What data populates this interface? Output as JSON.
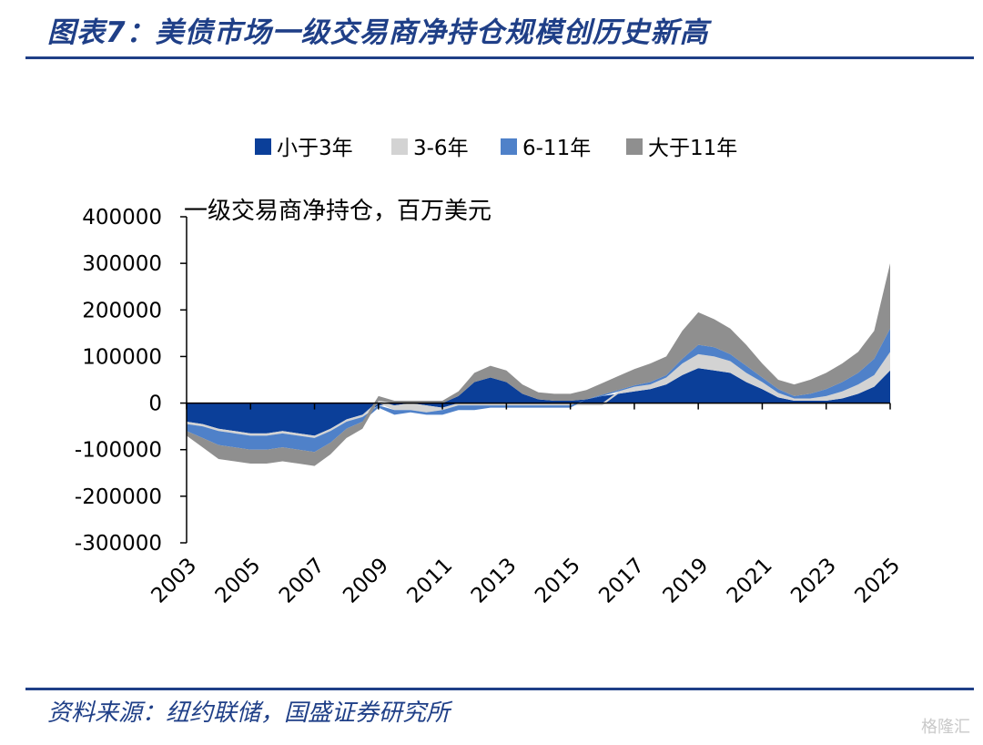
{
  "header": {
    "title": "图表7：美债市场一级交易商净持仓规模创历史新高"
  },
  "footer": {
    "source": "资料来源：纽约联储，国盛证券研究所",
    "watermark": "格隆汇"
  },
  "chart_data": {
    "type": "area",
    "title": "",
    "ylabel": "一级交易商净持仓，百万美元",
    "xlabel": "",
    "ylim": [
      -300000,
      400000
    ],
    "yticks": [
      400000,
      300000,
      200000,
      100000,
      0,
      -100000,
      -200000,
      -300000
    ],
    "xlim": [
      2003,
      2025
    ],
    "xticks": [
      "2003",
      "2005",
      "2007",
      "2009",
      "2011",
      "2013",
      "2015",
      "2017",
      "2019",
      "2021",
      "2023",
      "2025"
    ],
    "legend_position": "top-center",
    "x": [
      2003,
      2003.5,
      2004,
      2004.5,
      2005,
      2005.5,
      2006,
      2006.5,
      2007,
      2007.5,
      2008,
      2008.5,
      2009,
      2009.5,
      2010,
      2010.5,
      2011,
      2011.5,
      2012,
      2012.5,
      2013,
      2013.5,
      2014,
      2014.5,
      2015,
      2015.5,
      2016,
      2016.5,
      2017,
      2017.5,
      2018,
      2018.5,
      2019,
      2019.5,
      2020,
      2020.5,
      2021,
      2021.5,
      2022,
      2022.5,
      2023,
      2023.5,
      2024,
      2024.5,
      2025
    ],
    "series": [
      {
        "name": "小于3年",
        "color": "#0b3f99",
        "values": [
          -40000,
          -45000,
          -55000,
          -60000,
          -65000,
          -65000,
          -60000,
          -65000,
          -70000,
          -55000,
          -35000,
          -25000,
          -5000,
          -5000,
          0,
          -5000,
          -10000,
          15000,
          45000,
          55000,
          45000,
          20000,
          8000,
          5000,
          5000,
          8000,
          15000,
          20000,
          25000,
          30000,
          40000,
          60000,
          75000,
          70000,
          65000,
          45000,
          30000,
          12000,
          5000,
          5000,
          5000,
          10000,
          20000,
          35000,
          70000
        ]
      },
      {
        "name": "3-6年",
        "color": "#d3d3d3",
        "values": [
          -5000,
          -5000,
          -5000,
          -5000,
          -5000,
          -5000,
          -5000,
          -5000,
          -5000,
          -5000,
          -5000,
          -5000,
          5000,
          -10000,
          -15000,
          -15000,
          -5000,
          -5000,
          -5000,
          -5000,
          -5000,
          -5000,
          -5000,
          -5000,
          -5000,
          -5000,
          -5000,
          5000,
          10000,
          10000,
          15000,
          25000,
          30000,
          30000,
          25000,
          20000,
          15000,
          10000,
          5000,
          5000,
          10000,
          15000,
          20000,
          25000,
          40000
        ]
      },
      {
        "name": "6-11年",
        "color": "#4f81c9",
        "values": [
          -15000,
          -25000,
          -30000,
          -30000,
          -30000,
          -30000,
          -30000,
          -30000,
          -30000,
          -25000,
          -15000,
          -10000,
          -5000,
          -10000,
          -5000,
          -5000,
          -10000,
          -10000,
          -10000,
          -5000,
          -5000,
          -5000,
          -5000,
          -5000,
          -5000,
          0,
          3000,
          3000,
          3000,
          5000,
          5000,
          10000,
          20000,
          20000,
          15000,
          15000,
          10000,
          8000,
          5000,
          10000,
          15000,
          20000,
          25000,
          35000,
          50000
        ]
      },
      {
        "name": "大于11年",
        "color": "#8f8f8f",
        "values": [
          -10000,
          -20000,
          -30000,
          -30000,
          -30000,
          -30000,
          -30000,
          -30000,
          -30000,
          -25000,
          -20000,
          -15000,
          10000,
          5000,
          5000,
          5000,
          5000,
          10000,
          20000,
          25000,
          25000,
          20000,
          15000,
          15000,
          15000,
          20000,
          25000,
          30000,
          35000,
          40000,
          40000,
          60000,
          70000,
          60000,
          55000,
          45000,
          30000,
          20000,
          25000,
          30000,
          35000,
          40000,
          45000,
          60000,
          140000
        ]
      }
    ]
  }
}
